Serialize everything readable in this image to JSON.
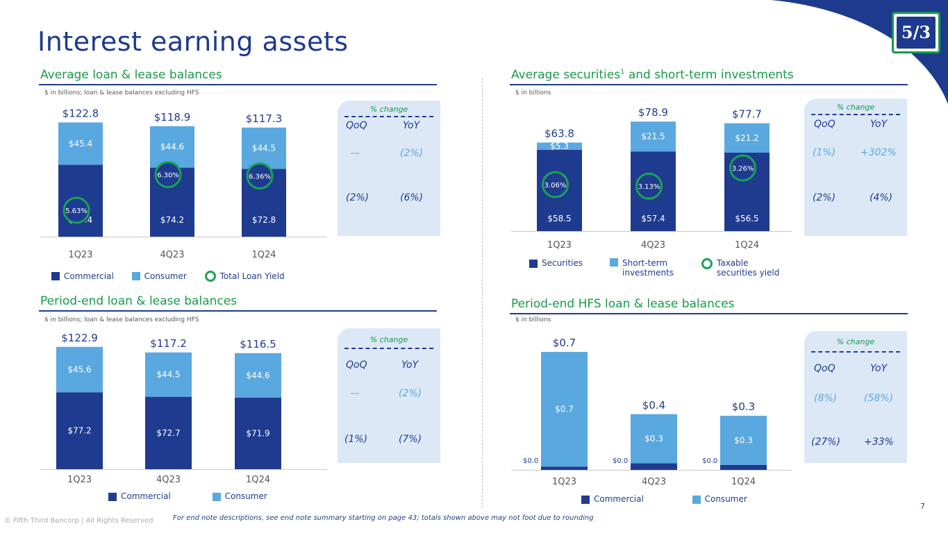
{
  "page": {
    "title": "Interest earning assets",
    "footer": "© Fifth Third Bancorp | All Rights Reserved",
    "endnote": "For end note descriptions, see end note summary starting on page 43; totals shown above may not foot due to rounding",
    "page_number": "7",
    "logo_text": "5/3"
  },
  "colors": {
    "dark": "#1f3b8f",
    "light": "#5aa8e0",
    "green": "#169b48",
    "panel": "#dce8f6"
  },
  "sections": {
    "avg_loans": {
      "title": "Average loan & lease balances",
      "subtitle": "$ in billions; loan & lease balances excluding HFS",
      "change": {
        "head": "% change",
        "qoq": "QoQ",
        "yoy": "YoY",
        "rows": [
          {
            "qoq": "—",
            "yoy": "(2%)"
          },
          {
            "qoq": "(2%)",
            "yoy": "(6%)"
          }
        ]
      },
      "legend": [
        "Commercial",
        "Consumer",
        "Total Loan Yield"
      ]
    },
    "avg_sec": {
      "title": "Average securities",
      "title_sup": "1",
      "title_tail": " and short-term investments",
      "subtitle": "$ in billions",
      "change": {
        "head": "% change",
        "qoq": "QoQ",
        "yoy": "YoY",
        "rows": [
          {
            "qoq": "(1%)",
            "yoy": "+302%"
          },
          {
            "qoq": "(2%)",
            "yoy": "(4%)"
          }
        ]
      },
      "legend": [
        "Securities",
        "Short-term investments",
        "Taxable securities yield"
      ]
    },
    "pe_loans": {
      "title": "Period-end loan & lease balances",
      "subtitle": "$ in billions; loan & lease balances excluding HFS",
      "change": {
        "head": "% change",
        "qoq": "QoQ",
        "yoy": "YoY",
        "rows": [
          {
            "qoq": "—",
            "yoy": "(2%)"
          },
          {
            "qoq": "(1%)",
            "yoy": "(7%)"
          }
        ]
      },
      "legend": [
        "Commercial",
        "Consumer"
      ]
    },
    "pe_hfs": {
      "title": "Period-end HFS loan & lease balances",
      "subtitle": "$ in billions",
      "change": {
        "head": "% change",
        "qoq": "QoQ",
        "yoy": "YoY",
        "rows": [
          {
            "qoq": "(8%)",
            "yoy": "(58%)"
          },
          {
            "qoq": "(27%)",
            "yoy": "+33%"
          }
        ]
      },
      "legend": [
        "Commercial",
        "Consumer"
      ]
    }
  },
  "chart_data": [
    {
      "id": "avg_loans",
      "type": "bar",
      "stacked": true,
      "categories": [
        "1Q23",
        "4Q23",
        "1Q24"
      ],
      "series": [
        {
          "name": "Commercial",
          "values": [
            77.4,
            74.2,
            72.8
          ],
          "labels": [
            "$77.4",
            "$74.2",
            "$72.8"
          ]
        },
        {
          "name": "Consumer",
          "values": [
            45.4,
            44.6,
            44.5
          ],
          "labels": [
            "$45.4",
            "$44.6",
            "$44.5"
          ]
        }
      ],
      "totals": [
        "$122.8",
        "$118.9",
        "$117.3"
      ],
      "yield": {
        "name": "Total Loan Yield",
        "labels": [
          "5.63%",
          "6.30%",
          "6.36%"
        ],
        "values": [
          5.63,
          6.3,
          6.36
        ]
      }
    },
    {
      "id": "avg_sec",
      "type": "bar",
      "stacked": true,
      "categories": [
        "1Q23",
        "4Q23",
        "1Q24"
      ],
      "series": [
        {
          "name": "Securities",
          "values": [
            58.5,
            57.4,
            56.5
          ],
          "labels": [
            "$58.5",
            "$57.4",
            "$56.5"
          ]
        },
        {
          "name": "Short-term investments",
          "values": [
            5.3,
            21.5,
            21.2
          ],
          "labels": [
            "$5.3",
            "$21.5",
            "$21.2"
          ]
        }
      ],
      "totals": [
        "$63.8",
        "$78.9",
        "$77.7"
      ],
      "yield": {
        "name": "Taxable securities yield",
        "labels": [
          "3.06%",
          "3.13%",
          "3.26%"
        ],
        "values": [
          3.06,
          3.13,
          3.26
        ]
      }
    },
    {
      "id": "pe_loans",
      "type": "bar",
      "stacked": true,
      "categories": [
        "1Q23",
        "4Q23",
        "1Q24"
      ],
      "series": [
        {
          "name": "Commercial",
          "values": [
            77.2,
            72.7,
            71.9
          ],
          "labels": [
            "$77.2",
            "$72.7",
            "$71.9"
          ]
        },
        {
          "name": "Consumer",
          "values": [
            45.6,
            44.5,
            44.6
          ],
          "labels": [
            "$45.6",
            "$44.5",
            "$44.6"
          ]
        }
      ],
      "totals": [
        "$122.9",
        "$117.2",
        "$116.5"
      ]
    },
    {
      "id": "pe_hfs",
      "type": "bar",
      "stacked": true,
      "categories": [
        "1Q23",
        "4Q23",
        "1Q24"
      ],
      "series": [
        {
          "name": "Commercial",
          "values": [
            0.02,
            0.04,
            0.03
          ],
          "labels": [
            "$0.0",
            "$0.0",
            "$0.0"
          ]
        },
        {
          "name": "Consumer",
          "values": [
            0.7,
            0.3,
            0.3
          ],
          "labels": [
            "$0.7",
            "$0.3",
            "$0.3"
          ]
        }
      ],
      "totals": [
        "$0.7",
        "$0.4",
        "$0.3"
      ]
    }
  ]
}
